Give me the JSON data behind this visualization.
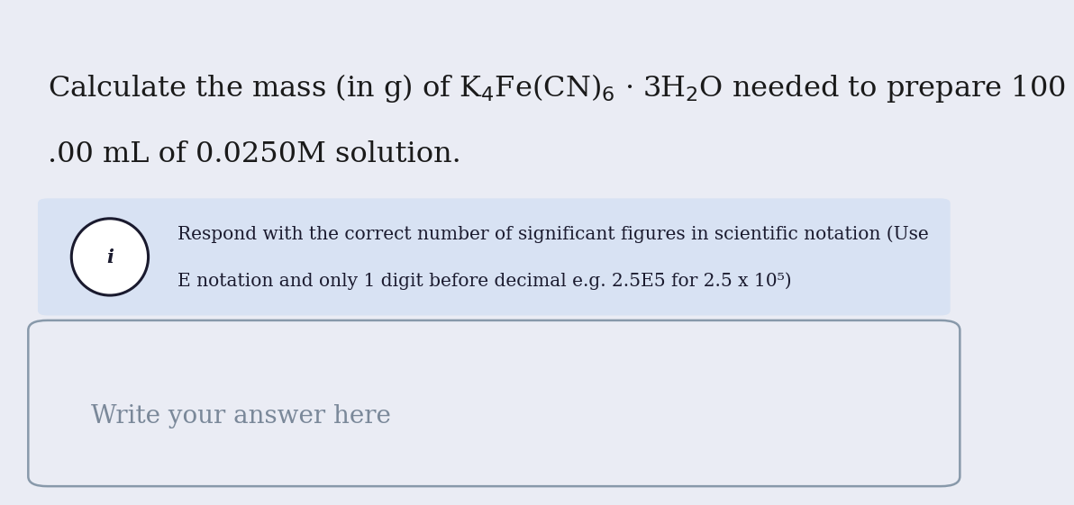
{
  "bg_color": "#eaecf4",
  "title_line1": "Calculate the mass (in g) of K$_4$Fe(CN)$_6$ · 3H$_2$O needed to prepare 100",
  "title_line2": ".00 mL of 0.0250M solution.",
  "info_box_color": "#d8e2f3",
  "info_box_edge": "#d8e2f3",
  "info_line1": "Respond with the correct number of significant figures in scientific notation (Use",
  "info_line2": "E notation and only 1 digit before decimal e.g. 2.5E5 for 2.5 x 10⁵)",
  "answer_box_color": "#eaecf4",
  "answer_box_border": "#8899aa",
  "answer_placeholder": "Write your answer here",
  "answer_text_color": "#7a8899",
  "title_color": "#1a1a1a",
  "info_text_color": "#1a1a2e",
  "icon_circle_color": "#1a1a2e",
  "icon_i_color": "#1a1a2e",
  "font_size_title": 23,
  "font_size_info": 14.5,
  "font_size_answer": 20,
  "title_font": "serif",
  "info_font": "serif",
  "answer_font": "serif"
}
